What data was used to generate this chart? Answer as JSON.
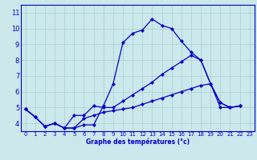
{
  "title": "Graphe des températures (°c)",
  "background_color": "#cce8ec",
  "grid_color": "#aacccc",
  "line_color": "#0000cc",
  "xlim": [
    -0.5,
    23.5
  ],
  "ylim": [
    3.5,
    11.5
  ],
  "xticks": [
    0,
    1,
    2,
    3,
    4,
    5,
    6,
    7,
    8,
    9,
    10,
    11,
    12,
    13,
    14,
    15,
    16,
    17,
    18,
    19,
    20,
    21,
    22,
    23
  ],
  "yticks": [
    4,
    5,
    6,
    7,
    8,
    9,
    10,
    11
  ],
  "series1_x": [
    0,
    1,
    2,
    3,
    4,
    5,
    6,
    7,
    8,
    9,
    10,
    11,
    12,
    13,
    14,
    15,
    16,
    17,
    18,
    19,
    20,
    21,
    22
  ],
  "series1_y": [
    4.9,
    4.4,
    3.8,
    4.0,
    3.7,
    3.7,
    3.9,
    3.9,
    5.1,
    6.5,
    9.1,
    9.7,
    9.9,
    10.6,
    10.2,
    10.0,
    9.2,
    8.5,
    8.0,
    6.5,
    5.0,
    5.0,
    5.1
  ],
  "series2_x": [
    0,
    1,
    2,
    3,
    4,
    5,
    6,
    7,
    8,
    9,
    10,
    11,
    12,
    13,
    14,
    15,
    16,
    17,
    18,
    19,
    20,
    21,
    22
  ],
  "series2_y": [
    4.9,
    4.4,
    3.8,
    4.0,
    3.7,
    4.5,
    4.5,
    5.1,
    5.0,
    5.0,
    5.4,
    5.8,
    6.2,
    6.6,
    7.1,
    7.5,
    7.9,
    8.3,
    8.0,
    6.5,
    5.3,
    5.0,
    5.1
  ],
  "series3_x": [
    0,
    1,
    2,
    3,
    4,
    5,
    6,
    7,
    8,
    9,
    10,
    11,
    12,
    13,
    14,
    15,
    16,
    17,
    18,
    19,
    20,
    21,
    22
  ],
  "series3_y": [
    4.9,
    4.4,
    3.8,
    4.0,
    3.7,
    3.7,
    4.3,
    4.5,
    4.7,
    4.8,
    4.9,
    5.0,
    5.2,
    5.4,
    5.6,
    5.8,
    6.0,
    6.2,
    6.4,
    6.5,
    5.3,
    5.0,
    5.1
  ]
}
